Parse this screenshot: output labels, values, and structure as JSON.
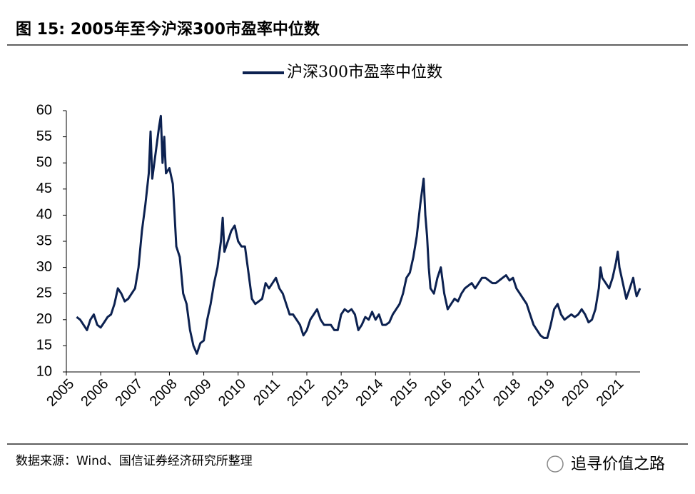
{
  "chart_data": {
    "type": "line",
    "title": "图 15: 2005年至今沪深300市盈率中位数",
    "source": "数据来源：Wind、国信证券经济研究所整理",
    "watermark": "追寻价值之路",
    "legend_position": "top",
    "xlim": [
      2005,
      2021.7
    ],
    "xticks": [
      2005,
      2006,
      2007,
      2008,
      2009,
      2010,
      2011,
      2012,
      2013,
      2014,
      2015,
      2016,
      2017,
      2018,
      2019,
      2020,
      2021
    ],
    "ylim": [
      10,
      60
    ],
    "yticks": [
      10,
      15,
      20,
      25,
      30,
      35,
      40,
      45,
      50,
      55,
      60
    ],
    "x": [
      2005.3,
      2005.4,
      2005.5,
      2005.6,
      2005.7,
      2005.8,
      2005.9,
      2006.0,
      2006.1,
      2006.2,
      2006.3,
      2006.4,
      2006.5,
      2006.6,
      2006.7,
      2006.8,
      2006.9,
      2007.0,
      2007.1,
      2007.2,
      2007.3,
      2007.4,
      2007.45,
      2007.5,
      2007.6,
      2007.7,
      2007.75,
      2007.8,
      2007.85,
      2007.9,
      2008.0,
      2008.1,
      2008.15,
      2008.2,
      2008.3,
      2008.4,
      2008.5,
      2008.6,
      2008.7,
      2008.8,
      2008.9,
      2009.0,
      2009.1,
      2009.2,
      2009.3,
      2009.4,
      2009.5,
      2009.55,
      2009.6,
      2009.7,
      2009.8,
      2009.9,
      2010.0,
      2010.1,
      2010.2,
      2010.3,
      2010.4,
      2010.5,
      2010.6,
      2010.7,
      2010.8,
      2010.9,
      2011.0,
      2011.1,
      2011.2,
      2011.3,
      2011.4,
      2011.5,
      2011.6,
      2011.7,
      2011.8,
      2011.9,
      2012.0,
      2012.1,
      2012.2,
      2012.3,
      2012.4,
      2012.5,
      2012.6,
      2012.7,
      2012.8,
      2012.9,
      2013.0,
      2013.1,
      2013.2,
      2013.3,
      2013.4,
      2013.5,
      2013.6,
      2013.7,
      2013.8,
      2013.9,
      2014.0,
      2014.1,
      2014.2,
      2014.3,
      2014.4,
      2014.5,
      2014.6,
      2014.7,
      2014.8,
      2014.9,
      2015.0,
      2015.1,
      2015.2,
      2015.3,
      2015.4,
      2015.45,
      2015.5,
      2015.55,
      2015.6,
      2015.7,
      2015.8,
      2015.9,
      2016.0,
      2016.1,
      2016.2,
      2016.3,
      2016.4,
      2016.5,
      2016.6,
      2016.7,
      2016.8,
      2016.9,
      2017.0,
      2017.1,
      2017.2,
      2017.3,
      2017.4,
      2017.5,
      2017.6,
      2017.7,
      2017.8,
      2017.9,
      2018.0,
      2018.1,
      2018.2,
      2018.3,
      2018.4,
      2018.5,
      2018.6,
      2018.7,
      2018.8,
      2018.9,
      2019.0,
      2019.1,
      2019.2,
      2019.3,
      2019.4,
      2019.5,
      2019.6,
      2019.7,
      2019.8,
      2019.9,
      2020.0,
      2020.1,
      2020.2,
      2020.3,
      2020.4,
      2020.5,
      2020.55,
      2020.6,
      2020.7,
      2020.8,
      2020.9,
      2021.0,
      2021.05,
      2021.1,
      2021.2,
      2021.3,
      2021.4,
      2021.5,
      2021.55,
      2021.6,
      2021.7
    ],
    "series": [
      {
        "name": "沪深300市盈率中位数",
        "color": "#0c2150",
        "values": [
          20.5,
          20,
          19,
          18,
          20,
          21,
          19,
          18.5,
          19.5,
          20.5,
          21,
          23,
          26,
          25,
          23.5,
          24,
          25,
          26,
          30,
          37,
          42,
          48,
          56,
          47,
          52,
          57,
          59,
          50,
          55,
          48,
          49,
          46,
          40,
          34,
          32,
          25,
          23,
          18,
          15,
          13.5,
          15.5,
          16,
          20,
          23,
          27,
          30,
          35,
          39.5,
          33,
          35,
          37,
          38,
          35,
          34,
          34,
          29,
          24,
          23,
          23.5,
          24,
          27,
          26,
          27,
          28,
          26,
          25,
          23,
          21,
          21,
          20,
          19,
          17,
          18,
          20,
          21,
          22,
          20,
          19,
          19,
          19,
          18,
          18,
          21,
          22,
          21.5,
          22,
          21,
          18,
          19,
          20.5,
          20,
          21.5,
          20,
          21,
          19,
          19,
          19.5,
          21,
          22,
          23,
          25,
          28,
          29,
          32,
          36,
          42,
          47,
          40,
          36,
          30,
          26,
          25,
          28,
          30,
          25,
          22,
          23,
          24,
          23.5,
          25,
          26,
          26.5,
          27,
          26,
          27,
          28,
          28,
          27.5,
          27,
          27,
          27.5,
          28,
          28.5,
          27.5,
          28,
          26,
          25,
          24,
          23,
          21,
          19,
          18,
          17,
          16.5,
          16.5,
          19,
          22,
          23,
          21,
          20,
          20.5,
          21,
          20.5,
          21,
          22,
          21,
          19.5,
          20,
          22,
          26,
          30,
          28,
          27,
          26,
          28,
          31,
          33,
          30,
          27,
          24,
          26,
          28,
          26,
          24.5,
          26
        ]
      }
    ]
  }
}
